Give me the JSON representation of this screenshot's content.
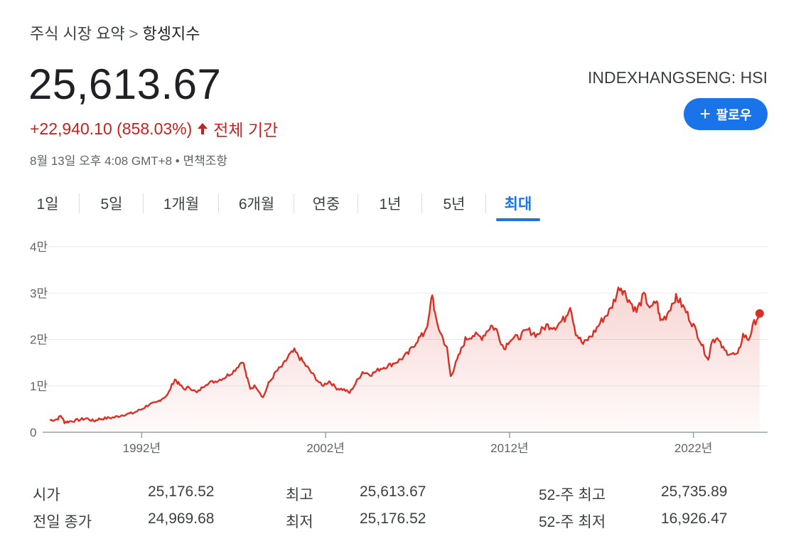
{
  "breadcrumb": {
    "parent": "주식 시장 요약",
    "separator": ">",
    "current": "항셍지수"
  },
  "quote": {
    "price": "25,613.67",
    "change": "+22,940.10 (858.03%)",
    "period": "전체 기간",
    "timestamp": "8월 13일 오후 4:08 GMT+8 • 면책조항",
    "ticker": "INDEXHANGSENG: HSI"
  },
  "follow_button": {
    "label": "팔로우"
  },
  "tabs": [
    {
      "label": "1일"
    },
    {
      "label": "5일"
    },
    {
      "label": "1개월"
    },
    {
      "label": "6개월"
    },
    {
      "label": "연중"
    },
    {
      "label": "1년"
    },
    {
      "label": "5년"
    },
    {
      "label": "최대",
      "active": true
    }
  ],
  "colors": {
    "line": "#d93025",
    "accent": "#1a73e8",
    "negative": "#c5221f"
  },
  "chart_data": {
    "type": "area",
    "ylim": [
      0,
      40000
    ],
    "y_ticks": [
      {
        "value": 0,
        "label": "0"
      },
      {
        "value": 10000,
        "label": "1만"
      },
      {
        "value": 20000,
        "label": "2만"
      },
      {
        "value": 30000,
        "label": "3만"
      },
      {
        "value": 40000,
        "label": "4만"
      }
    ],
    "xlim": [
      1987.0,
      2025.8
    ],
    "x_ticks": [
      {
        "value": 1992,
        "label": "1992년"
      },
      {
        "value": 2002,
        "label": "2002년"
      },
      {
        "value": 2012,
        "label": "2012년"
      },
      {
        "value": 2022,
        "label": "2022년"
      }
    ],
    "series": [
      {
        "x": [
          1987.0,
          1987.4,
          1987.6,
          1987.8,
          1988.0,
          1988.5,
          1989.0,
          1989.4,
          1989.6,
          1990.0,
          1990.5,
          1991.0,
          1991.5,
          1992.0,
          1992.4,
          1992.8,
          1993.0,
          1993.4,
          1993.8,
          1994.0,
          1994.3,
          1994.6,
          1995.0,
          1995.5,
          1996.0,
          1996.5,
          1997.0,
          1997.5,
          1997.7,
          1997.9,
          1998.2,
          1998.6,
          1998.9,
          1999.3,
          1999.7,
          2000.0,
          2000.3,
          2000.6,
          2001.0,
          2001.4,
          2001.8,
          2002.2,
          2002.6,
          2003.0,
          2003.3,
          2003.7,
          2004.0,
          2004.5,
          2005.0,
          2005.5,
          2006.0,
          2006.5,
          2007.0,
          2007.3,
          2007.6,
          2007.8,
          2008.0,
          2008.3,
          2008.6,
          2008.8,
          2009.0,
          2009.3,
          2009.6,
          2010.0,
          2010.5,
          2011.0,
          2011.3,
          2011.7,
          2012.0,
          2012.5,
          2013.0,
          2013.5,
          2014.0,
          2014.5,
          2015.0,
          2015.3,
          2015.6,
          2016.0,
          2016.5,
          2017.0,
          2017.5,
          2018.0,
          2018.2,
          2018.5,
          2018.9,
          2019.3,
          2019.7,
          2020.0,
          2020.2,
          2020.5,
          2021.0,
          2021.2,
          2021.6,
          2022.0,
          2022.3,
          2022.6,
          2022.8,
          2023.0,
          2023.3,
          2023.7,
          2024.0,
          2024.4,
          2024.7,
          2025.0,
          2025.3,
          2025.6
        ],
        "y": [
          2600,
          2800,
          3600,
          2200,
          2300,
          2600,
          3000,
          2400,
          2800,
          3000,
          3200,
          3800,
          4100,
          5000,
          6000,
          6300,
          7000,
          8000,
          11500,
          10500,
          9300,
          9700,
          8500,
          10500,
          11000,
          11800,
          13200,
          15500,
          12000,
          9500,
          10000,
          7500,
          10500,
          13000,
          14500,
          16500,
          17500,
          16000,
          14000,
          12000,
          10000,
          11000,
          9500,
          9200,
          8500,
          11000,
          13000,
          12500,
          13800,
          14500,
          15500,
          17000,
          20000,
          21000,
          24000,
          30000,
          24000,
          21000,
          18000,
          12000,
          14000,
          17000,
          20000,
          21000,
          20500,
          23000,
          22000,
          18000,
          20000,
          20500,
          22000,
          21000,
          23000,
          22800,
          24500,
          27500,
          21500,
          19000,
          21000,
          24000,
          26500,
          31500,
          30500,
          28500,
          26000,
          29500,
          26500,
          28500,
          24000,
          25000,
          29000,
          28500,
          26000,
          23000,
          20500,
          17500,
          15500,
          20000,
          20000,
          17500,
          17000,
          16500,
          21000,
          20000,
          23500,
          25613
        ]
      }
    ]
  },
  "stats": {
    "col1": [
      {
        "label": "시가",
        "value": "25,176.52"
      },
      {
        "label": "전일 종가",
        "value": "24,969.68"
      }
    ],
    "col2": [
      {
        "label": "최고",
        "value": "25,613.67"
      },
      {
        "label": "최저",
        "value": "25,176.52"
      }
    ],
    "col3": [
      {
        "label": "52-주 최고",
        "value": "25,735.89"
      },
      {
        "label": "52-주 최저",
        "value": "16,926.47"
      }
    ]
  }
}
